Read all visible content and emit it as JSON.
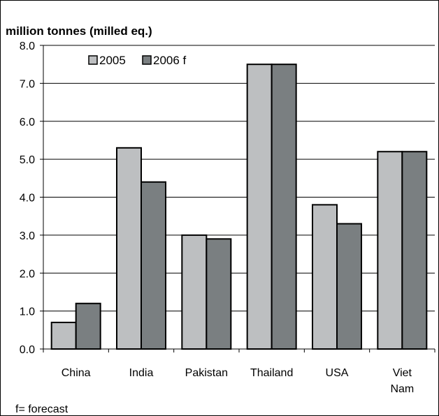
{
  "chart_data": {
    "type": "bar",
    "ylabel": "million tonnes (milled eq.)",
    "categories": [
      [
        "China"
      ],
      [
        "India"
      ],
      [
        "Pakistan"
      ],
      [
        "Thailand"
      ],
      [
        "USA"
      ],
      [
        "Viet",
        "Nam"
      ]
    ],
    "series": [
      {
        "name": "2005",
        "values": [
          0.7,
          5.3,
          3.0,
          7.5,
          3.8,
          5.2
        ]
      },
      {
        "name": "2006 f",
        "values": [
          1.2,
          4.4,
          2.9,
          7.5,
          3.3,
          5.2
        ]
      }
    ],
    "ylim": [
      0,
      8
    ],
    "yticks": [
      "0.0",
      "1.0",
      "2.0",
      "3.0",
      "4.0",
      "5.0",
      "6.0",
      "7.0",
      "8.0"
    ],
    "grid": true,
    "legend_position": "top-left",
    "colors": [
      "#bdbfc1",
      "#7a7f81"
    ],
    "footnote": "f= forecast"
  }
}
